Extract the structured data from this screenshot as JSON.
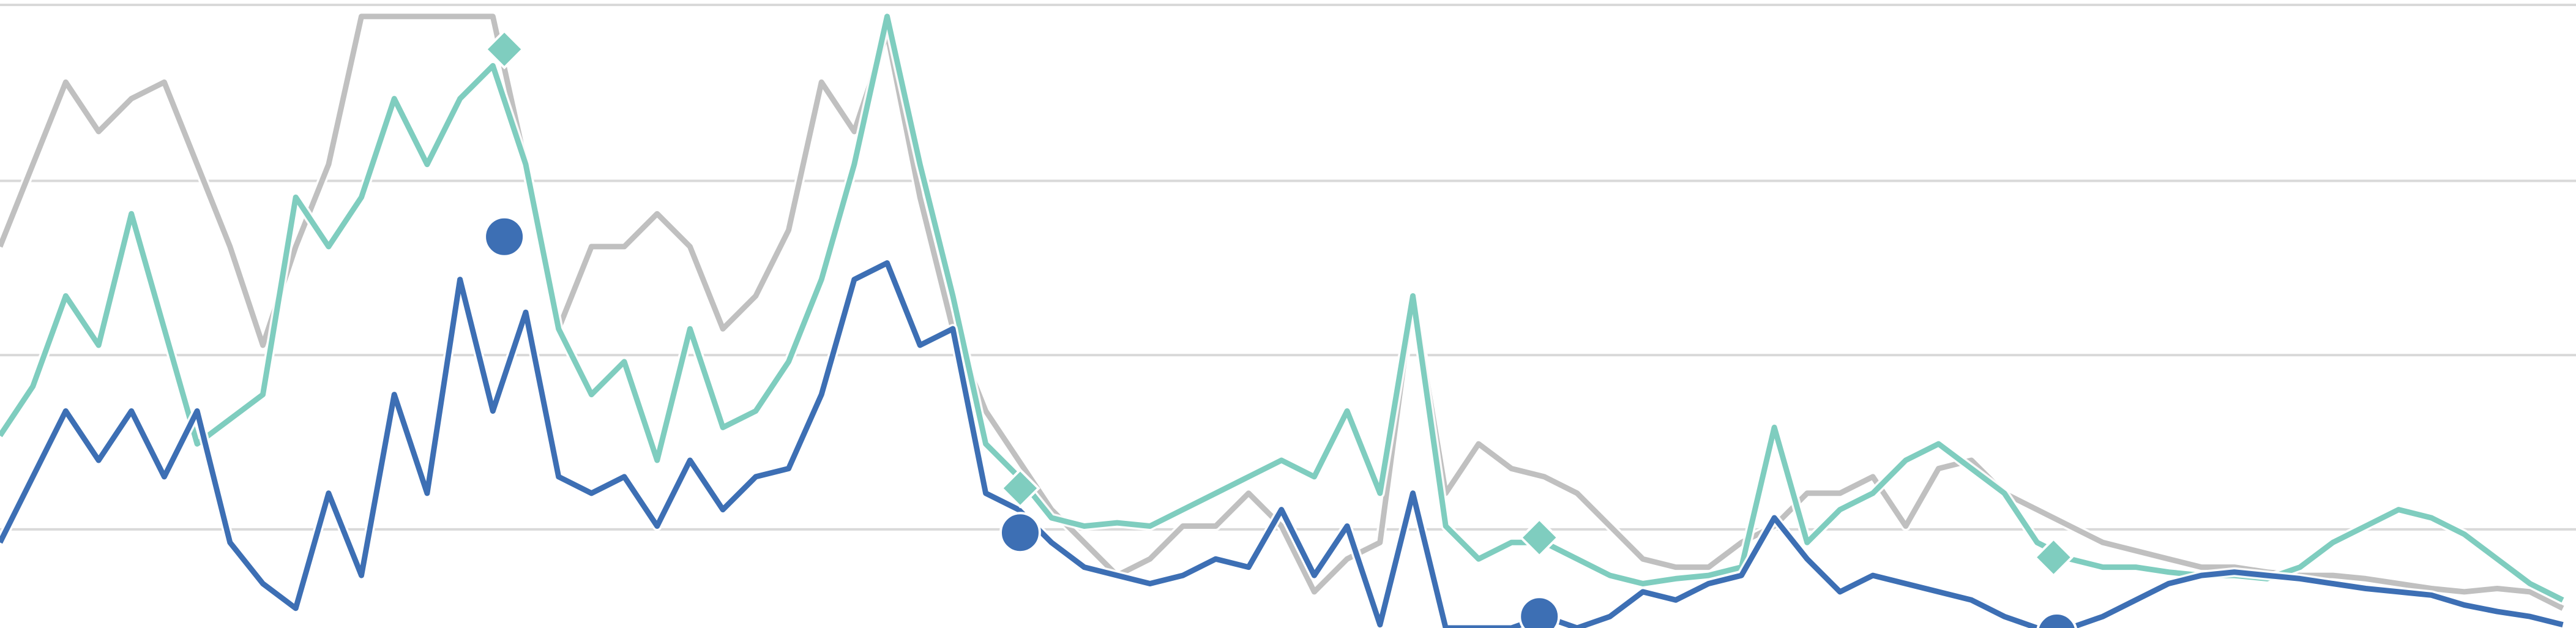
{
  "chart_data": {
    "type": "line",
    "x": [
      0,
      1,
      2,
      3,
      4,
      5,
      6,
      7,
      8,
      9,
      10,
      11,
      12,
      13,
      14,
      15,
      16,
      17,
      18,
      19,
      20,
      21,
      22,
      23,
      24,
      25,
      26,
      27,
      28,
      29,
      30,
      31,
      32,
      33,
      34,
      35,
      36,
      37,
      38,
      39,
      40,
      41,
      42,
      43,
      44,
      45,
      46,
      47,
      48,
      49,
      50,
      51,
      52,
      53,
      54,
      55,
      56,
      57,
      58,
      59,
      60,
      61,
      62,
      63,
      64,
      65,
      66,
      67,
      68,
      69,
      70,
      71,
      72,
      73,
      74,
      75,
      76,
      77,
      78
    ],
    "xlim": [
      0,
      78.4
    ],
    "ylim": [
      0,
      382
    ],
    "yticks": [
      60,
      166,
      272,
      379
    ],
    "grid": true,
    "series": [
      {
        "color": "#b5b5b5",
        "values": [
          232,
          282,
          332,
          302,
          322,
          332,
          282,
          232,
          172,
          232,
          282,
          372,
          372,
          372,
          372,
          372,
          282,
          182,
          232,
          232,
          252,
          232,
          182,
          202,
          242,
          332,
          302,
          362,
          262,
          182,
          132,
          102,
          72,
          52,
          32,
          42,
          62,
          62,
          82,
          62,
          22,
          42,
          52,
          202,
          82,
          112,
          97,
          92,
          82,
          62,
          42,
          37,
          37,
          52,
          62,
          82,
          82,
          92,
          62,
          97,
          102,
          82,
          72,
          62,
          52,
          47,
          42,
          37,
          37,
          34,
          32,
          32,
          30,
          27,
          24,
          22,
          24,
          22,
          12
        ]
      },
      {
        "color": "#7fcdbf",
        "values": [
          117,
          147,
          202,
          172,
          252,
          182,
          112,
          127,
          142,
          262,
          232,
          262,
          322,
          282,
          322,
          342,
          282,
          182,
          142,
          162,
          102,
          182,
          122,
          132,
          162,
          212,
          282,
          372,
          282,
          202,
          112,
          92,
          67,
          62,
          64,
          62,
          72,
          82,
          92,
          102,
          92,
          132,
          82,
          202,
          62,
          42,
          52,
          52,
          42,
          32,
          27,
          30,
          32,
          37,
          122,
          52,
          72,
          82,
          102,
          112,
          97,
          82,
          52,
          42,
          37,
          37,
          34,
          32,
          32,
          30,
          37,
          52,
          62,
          72,
          67,
          57,
          42,
          27,
          17
        ]
      },
      {
        "color": "#3d6fb4",
        "values": [
          52,
          92,
          132,
          102,
          132,
          92,
          132,
          52,
          27,
          12,
          82,
          32,
          142,
          82,
          212,
          132,
          192,
          92,
          82,
          92,
          62,
          102,
          72,
          92,
          97,
          142,
          212,
          222,
          172,
          182,
          82,
          72,
          52,
          37,
          32,
          27,
          32,
          42,
          37,
          72,
          32,
          62,
          2,
          82,
          0,
          0,
          0,
          7,
          0,
          7,
          22,
          17,
          27,
          32,
          67,
          42,
          22,
          32,
          27,
          22,
          17,
          7,
          0,
          0,
          7,
          17,
          27,
          32,
          34,
          32,
          30,
          27,
          24,
          22,
          20,
          14,
          10,
          7,
          2
        ]
      }
    ],
    "points": [
      {
        "color": "#7fcdbf",
        "shape": "diamond",
        "x": [
          15.35,
          31.05,
          46.85,
          62.5
        ],
        "values": [
          352,
          85,
          55,
          43
        ]
      },
      {
        "color": "#3d6fb4",
        "shape": "circle",
        "x": [
          15.35,
          31.05,
          46.85,
          62.6
        ],
        "values": [
          238,
          58,
          7,
          -3
        ]
      }
    ]
  }
}
